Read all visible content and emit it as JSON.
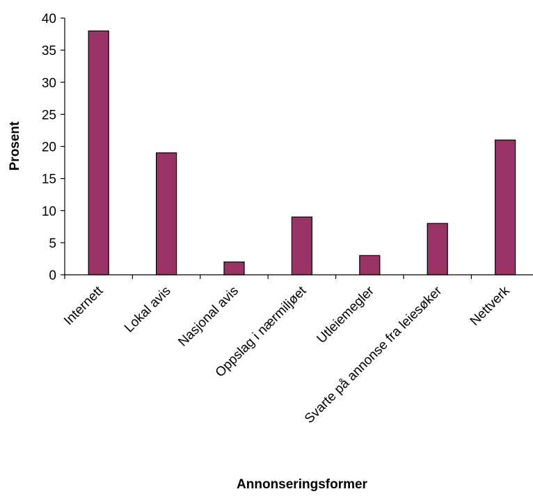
{
  "chart_data": {
    "type": "bar",
    "categories": [
      "Internett",
      "Lokal avis",
      "Nasjonal avis",
      "Oppslag i nærmiljøet",
      "Utleiemegler",
      "Svarte på annonse fra leiesøker",
      "Nettverk"
    ],
    "values": [
      38,
      19,
      2,
      9,
      3,
      8,
      21
    ],
    "xlabel": "Annonseringsformer",
    "ylabel": "Prosent",
    "ylim": [
      0,
      40
    ],
    "yticks": [
      0,
      5,
      10,
      15,
      20,
      25,
      30,
      35,
      40
    ],
    "grid": false,
    "legend": "none",
    "bar_color": "#993366"
  }
}
